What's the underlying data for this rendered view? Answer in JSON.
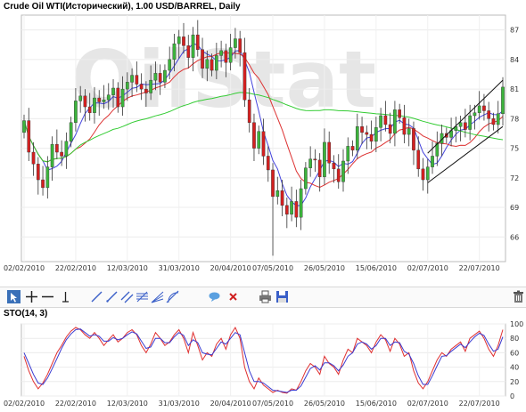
{
  "header": {
    "title": "Crude Oil WTI(Исторический), 1.00 USD/BARREL, Daily",
    "watermark": "OilStat"
  },
  "toolbar": {
    "tools": [
      "cursor-icon",
      "crosshair-icon",
      "horizontal-line-icon",
      "vertical-line-icon",
      "trend-line-icon",
      "ray-icon",
      "channel-icon",
      "fibonacci-icon",
      "fan-icon",
      "arc-icon",
      "comment-icon",
      "delete-icon",
      "print-icon",
      "save-icon",
      "trash-icon"
    ]
  },
  "indicator": {
    "label": "STO(14, 3)"
  },
  "chart_data": [
    {
      "type": "candlestick",
      "title": "Crude Oil WTI(Исторический), 1.00 USD/BARREL, Daily",
      "x_ticks": [
        "02/02/2010",
        "22/02/2010",
        "12/03/2010",
        "31/03/2010",
        "20/04/2010",
        "07/05/2010",
        "26/05/2010",
        "15/06/2010",
        "02/07/2010",
        "22/07/2010"
      ],
      "y_ticks": [
        66,
        69,
        72,
        75,
        78,
        81,
        84,
        87
      ],
      "ylim": [
        63.5,
        88.5
      ],
      "closes": [
        77.8,
        74.6,
        73.4,
        71.8,
        71.0,
        73.1,
        75.4,
        74.6,
        74.2,
        75.7,
        77.6,
        79.8,
        80.3,
        79.2,
        78.6,
        80.1,
        79.7,
        79.9,
        80.4,
        81.1,
        79.2,
        81.0,
        81.7,
        82.4,
        81.5,
        81.0,
        80.6,
        81.9,
        82.6,
        81.7,
        82.9,
        84.0,
        85.6,
        86.3,
        85.4,
        84.2,
        86.5,
        85.0,
        83.1,
        84.0,
        82.9,
        84.4,
        84.9,
        83.7,
        85.2,
        86.1,
        84.7,
        79.9,
        77.6,
        75.0,
        76.7,
        74.2,
        72.8,
        70.1,
        70.7,
        69.2,
        68.3,
        69.6,
        68.0,
        70.9,
        73.0,
        73.9,
        73.8,
        72.1,
        75.6,
        73.5,
        72.9,
        71.6,
        73.7,
        75.2,
        74.8,
        77.2,
        76.6,
        76.4,
        75.7,
        77.1,
        78.3,
        77.4,
        76.5,
        78.9,
        78.1,
        76.4,
        77.0,
        74.8,
        72.9,
        71.8,
        73.1,
        74.2,
        75.5,
        76.5,
        76.1,
        76.8,
        77.2,
        77.6,
        76.9,
        78.3,
        78.6,
        79.3,
        78.8,
        78.0,
        77.4,
        78.5,
        81.2
      ],
      "series": [
        {
          "name": "",
          "color": "#4444dd",
          "style": "fast moving average"
        },
        {
          "name": "",
          "color": "#dd3333",
          "style": "slow moving average"
        },
        {
          "name": "",
          "color": "#33cc33",
          "style": "long moving average"
        }
      ],
      "channel": {
        "from_date": "02/07/2010",
        "to_date": "22/07/2010+",
        "upper": [
          74.5,
          81.9
        ],
        "lower": [
          71.5,
          77.2
        ]
      }
    },
    {
      "type": "line",
      "title": "STO(14, 3)",
      "ylim": [
        0,
        100
      ],
      "y_ticks": [
        0,
        20,
        40,
        60,
        80,
        100
      ],
      "series": [
        {
          "name": "",
          "color": "#e03030",
          "values": [
            55,
            35,
            20,
            10,
            18,
            30,
            45,
            60,
            70,
            82,
            90,
            95,
            92,
            85,
            80,
            88,
            80,
            70,
            78,
            85,
            75,
            80,
            88,
            92,
            85,
            70,
            60,
            72,
            88,
            80,
            70,
            75,
            85,
            92,
            80,
            60,
            88,
            70,
            50,
            60,
            55,
            72,
            80,
            65,
            85,
            95,
            80,
            40,
            20,
            10,
            25,
            15,
            10,
            5,
            8,
            5,
            4,
            10,
            8,
            20,
            35,
            45,
            40,
            30,
            55,
            45,
            40,
            30,
            50,
            65,
            60,
            80,
            75,
            70,
            60,
            75,
            85,
            78,
            62,
            80,
            72,
            55,
            60,
            35,
            18,
            10,
            20,
            35,
            50,
            60,
            55,
            65,
            70,
            75,
            62,
            80,
            85,
            90,
            80,
            65,
            55,
            70,
            92
          ]
        },
        {
          "name": "",
          "color": "#3a3ad0",
          "values": [
            60,
            45,
            30,
            18,
            16,
            25,
            38,
            52,
            66,
            78,
            86,
            92,
            93,
            88,
            83,
            85,
            83,
            76,
            76,
            81,
            78,
            80,
            85,
            89,
            86,
            76,
            66,
            68,
            80,
            80,
            74,
            74,
            82,
            88,
            84,
            70,
            78,
            74,
            60,
            58,
            57,
            66,
            75,
            72,
            80,
            88,
            85,
            60,
            35,
            20,
            20,
            18,
            13,
            8,
            7,
            6,
            5,
            8,
            8,
            14,
            26,
            38,
            42,
            36,
            46,
            46,
            42,
            35,
            43,
            55,
            60,
            72,
            75,
            72,
            65,
            70,
            80,
            80,
            70,
            75,
            74,
            62,
            58,
            45,
            28,
            16,
            16,
            28,
            42,
            55,
            56,
            62,
            67,
            72,
            67,
            75,
            82,
            87,
            84,
            72,
            62,
            65,
            82
          ]
        }
      ]
    }
  ]
}
